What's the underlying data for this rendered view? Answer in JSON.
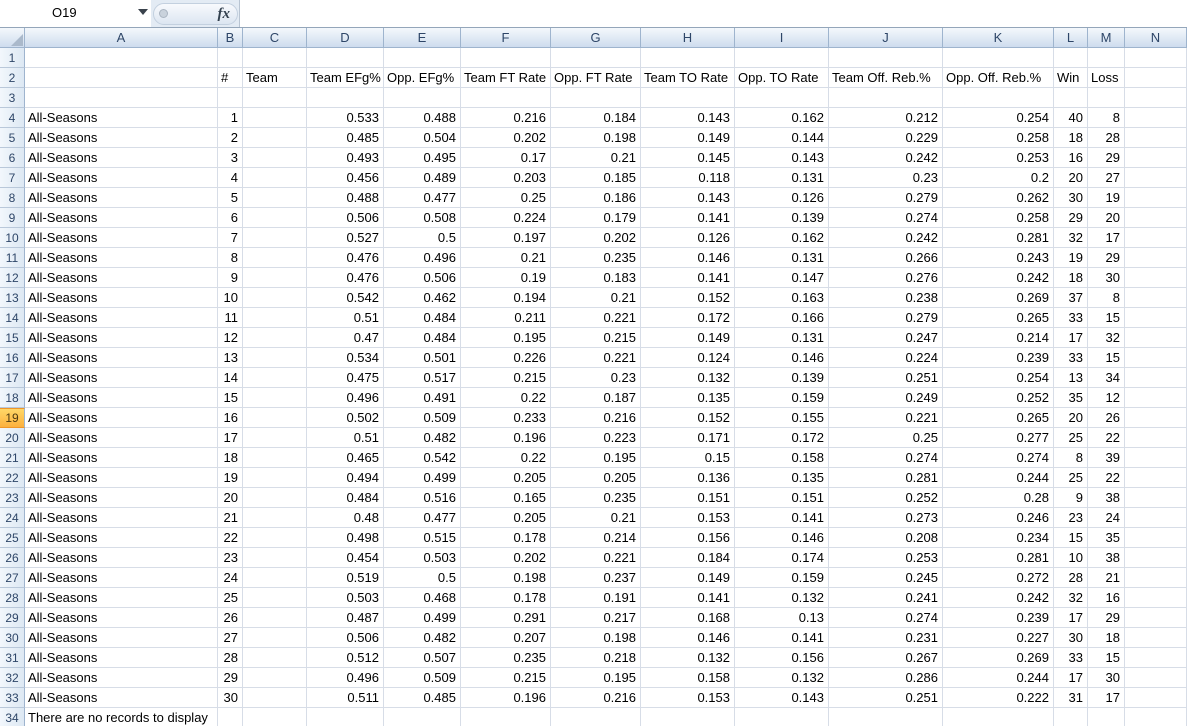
{
  "formula_bar": {
    "name_box_value": "O19",
    "fx_label": "fx",
    "formula_value": ""
  },
  "grid": {
    "column_letters": [
      "A",
      "B",
      "C",
      "D",
      "E",
      "F",
      "G",
      "H",
      "I",
      "J",
      "K",
      "L",
      "M",
      "N"
    ],
    "row_count": 34,
    "selected_row": 19,
    "selected_cell": "O19",
    "header_labels": {
      "B": "#",
      "C": "Team",
      "D": "Team EFg%",
      "E": "Opp. EFg%",
      "F": "Team FT Rate",
      "G": "Opp. FT Rate",
      "H": "Team TO Rate",
      "I": "Opp. TO Rate",
      "J": "Team Off. Reb.%",
      "K": "Opp. Off. Reb.%",
      "L": "Win",
      "M": "Loss"
    },
    "data_rows": [
      [
        "All-Seasons",
        "1",
        "",
        "0.533",
        "0.488",
        "0.216",
        "0.184",
        "0.143",
        "0.162",
        "0.212",
        "0.254",
        "40",
        "8"
      ],
      [
        "All-Seasons",
        "2",
        "",
        "0.485",
        "0.504",
        "0.202",
        "0.198",
        "0.149",
        "0.144",
        "0.229",
        "0.258",
        "18",
        "28"
      ],
      [
        "All-Seasons",
        "3",
        "",
        "0.493",
        "0.495",
        "0.17",
        "0.21",
        "0.145",
        "0.143",
        "0.242",
        "0.253",
        "16",
        "29"
      ],
      [
        "All-Seasons",
        "4",
        "",
        "0.456",
        "0.489",
        "0.203",
        "0.185",
        "0.118",
        "0.131",
        "0.23",
        "0.2",
        "20",
        "27"
      ],
      [
        "All-Seasons",
        "5",
        "",
        "0.488",
        "0.477",
        "0.25",
        "0.186",
        "0.143",
        "0.126",
        "0.279",
        "0.262",
        "30",
        "19"
      ],
      [
        "All-Seasons",
        "6",
        "",
        "0.506",
        "0.508",
        "0.224",
        "0.179",
        "0.141",
        "0.139",
        "0.274",
        "0.258",
        "29",
        "20"
      ],
      [
        "All-Seasons",
        "7",
        "",
        "0.527",
        "0.5",
        "0.197",
        "0.202",
        "0.126",
        "0.162",
        "0.242",
        "0.281",
        "32",
        "17"
      ],
      [
        "All-Seasons",
        "8",
        "",
        "0.476",
        "0.496",
        "0.21",
        "0.235",
        "0.146",
        "0.131",
        "0.266",
        "0.243",
        "19",
        "29"
      ],
      [
        "All-Seasons",
        "9",
        "",
        "0.476",
        "0.506",
        "0.19",
        "0.183",
        "0.141",
        "0.147",
        "0.276",
        "0.242",
        "18",
        "30"
      ],
      [
        "All-Seasons",
        "10",
        "",
        "0.542",
        "0.462",
        "0.194",
        "0.21",
        "0.152",
        "0.163",
        "0.238",
        "0.269",
        "37",
        "8"
      ],
      [
        "All-Seasons",
        "11",
        "",
        "0.51",
        "0.484",
        "0.211",
        "0.221",
        "0.172",
        "0.166",
        "0.279",
        "0.265",
        "33",
        "15"
      ],
      [
        "All-Seasons",
        "12",
        "",
        "0.47",
        "0.484",
        "0.195",
        "0.215",
        "0.149",
        "0.131",
        "0.247",
        "0.214",
        "17",
        "32"
      ],
      [
        "All-Seasons",
        "13",
        "",
        "0.534",
        "0.501",
        "0.226",
        "0.221",
        "0.124",
        "0.146",
        "0.224",
        "0.239",
        "33",
        "15"
      ],
      [
        "All-Seasons",
        "14",
        "",
        "0.475",
        "0.517",
        "0.215",
        "0.23",
        "0.132",
        "0.139",
        "0.251",
        "0.254",
        "13",
        "34"
      ],
      [
        "All-Seasons",
        "15",
        "",
        "0.496",
        "0.491",
        "0.22",
        "0.187",
        "0.135",
        "0.159",
        "0.249",
        "0.252",
        "35",
        "12"
      ],
      [
        "All-Seasons",
        "16",
        "",
        "0.502",
        "0.509",
        "0.233",
        "0.216",
        "0.152",
        "0.155",
        "0.221",
        "0.265",
        "20",
        "26"
      ],
      [
        "All-Seasons",
        "17",
        "",
        "0.51",
        "0.482",
        "0.196",
        "0.223",
        "0.171",
        "0.172",
        "0.25",
        "0.277",
        "25",
        "22"
      ],
      [
        "All-Seasons",
        "18",
        "",
        "0.465",
        "0.542",
        "0.22",
        "0.195",
        "0.15",
        "0.158",
        "0.274",
        "0.274",
        "8",
        "39"
      ],
      [
        "All-Seasons",
        "19",
        "",
        "0.494",
        "0.499",
        "0.205",
        "0.205",
        "0.136",
        "0.135",
        "0.281",
        "0.244",
        "25",
        "22"
      ],
      [
        "All-Seasons",
        "20",
        "",
        "0.484",
        "0.516",
        "0.165",
        "0.235",
        "0.151",
        "0.151",
        "0.252",
        "0.28",
        "9",
        "38"
      ],
      [
        "All-Seasons",
        "21",
        "",
        "0.48",
        "0.477",
        "0.205",
        "0.21",
        "0.153",
        "0.141",
        "0.273",
        "0.246",
        "23",
        "24"
      ],
      [
        "All-Seasons",
        "22",
        "",
        "0.498",
        "0.515",
        "0.178",
        "0.214",
        "0.156",
        "0.146",
        "0.208",
        "0.234",
        "15",
        "35"
      ],
      [
        "All-Seasons",
        "23",
        "",
        "0.454",
        "0.503",
        "0.202",
        "0.221",
        "0.184",
        "0.174",
        "0.253",
        "0.281",
        "10",
        "38"
      ],
      [
        "All-Seasons",
        "24",
        "",
        "0.519",
        "0.5",
        "0.198",
        "0.237",
        "0.149",
        "0.159",
        "0.245",
        "0.272",
        "28",
        "21"
      ],
      [
        "All-Seasons",
        "25",
        "",
        "0.503",
        "0.468",
        "0.178",
        "0.191",
        "0.141",
        "0.132",
        "0.241",
        "0.242",
        "32",
        "16"
      ],
      [
        "All-Seasons",
        "26",
        "",
        "0.487",
        "0.499",
        "0.291",
        "0.217",
        "0.168",
        "0.13",
        "0.274",
        "0.239",
        "17",
        "29"
      ],
      [
        "All-Seasons",
        "27",
        "",
        "0.506",
        "0.482",
        "0.207",
        "0.198",
        "0.146",
        "0.141",
        "0.231",
        "0.227",
        "30",
        "18"
      ],
      [
        "All-Seasons",
        "28",
        "",
        "0.512",
        "0.507",
        "0.235",
        "0.218",
        "0.132",
        "0.156",
        "0.267",
        "0.269",
        "33",
        "15"
      ],
      [
        "All-Seasons",
        "29",
        "",
        "0.496",
        "0.509",
        "0.215",
        "0.195",
        "0.158",
        "0.132",
        "0.286",
        "0.244",
        "17",
        "30"
      ],
      [
        "All-Seasons",
        "30",
        "",
        "0.511",
        "0.485",
        "0.196",
        "0.216",
        "0.153",
        "0.143",
        "0.251",
        "0.222",
        "31",
        "17"
      ]
    ],
    "no_records_message": "There are no records to display"
  },
  "colors": {
    "header_border": "#9eb4ce",
    "gridline": "#d7dde7",
    "selected_row_top": "#ffd767",
    "selected_row_bottom": "#fcb13e",
    "formula_bar_bg": "#e3ebf4"
  }
}
